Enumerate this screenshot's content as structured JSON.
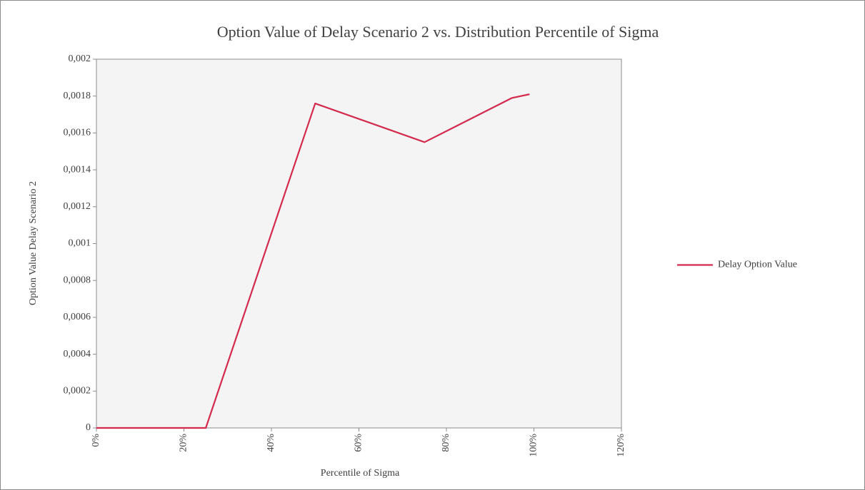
{
  "chart_data": {
    "type": "line",
    "title": "Option Value of Delay Scenario 2 vs. Distribution Percentile of Sigma",
    "x_label": "Percentile of Sigma",
    "y_label": "Option Value Delay Scenario 2",
    "x": [
      0,
      25,
      50,
      75,
      95,
      99
    ],
    "series": [
      {
        "name": "Delay Option Value",
        "color": "#d42a4e",
        "values": [
          0,
          0,
          0.00176,
          0.00155,
          0.00179,
          0.00181
        ]
      }
    ],
    "xlim": [
      0,
      120
    ],
    "xticks": [
      {
        "value": 0,
        "label": "0%"
      },
      {
        "value": 20,
        "label": "20%"
      },
      {
        "value": 40,
        "label": "40%"
      },
      {
        "value": 60,
        "label": "60%"
      },
      {
        "value": 80,
        "label": "80%"
      },
      {
        "value": 100,
        "label": "100%"
      },
      {
        "value": 120,
        "label": "120%"
      }
    ],
    "ylim": [
      0,
      0.002
    ],
    "yticks": [
      0,
      {
        "value": 0.0002,
        "label": "0,0002"
      },
      {
        "value": 0.0004,
        "label": "0,0004"
      },
      {
        "value": 0.0006,
        "label": "0,0006"
      },
      {
        "value": 0.0008,
        "label": "0,0008"
      },
      {
        "value": 0.001,
        "label": "0,001"
      },
      {
        "value": 0.0012,
        "label": "0,0012"
      },
      {
        "value": 0.0014,
        "label": "0,0014"
      },
      {
        "value": 0.0016,
        "label": "0,0016"
      },
      {
        "value": 0.0018,
        "label": "0,0018"
      },
      {
        "value": 0.002,
        "label": "0,002"
      }
    ],
    "grid": false,
    "legend": "right"
  }
}
